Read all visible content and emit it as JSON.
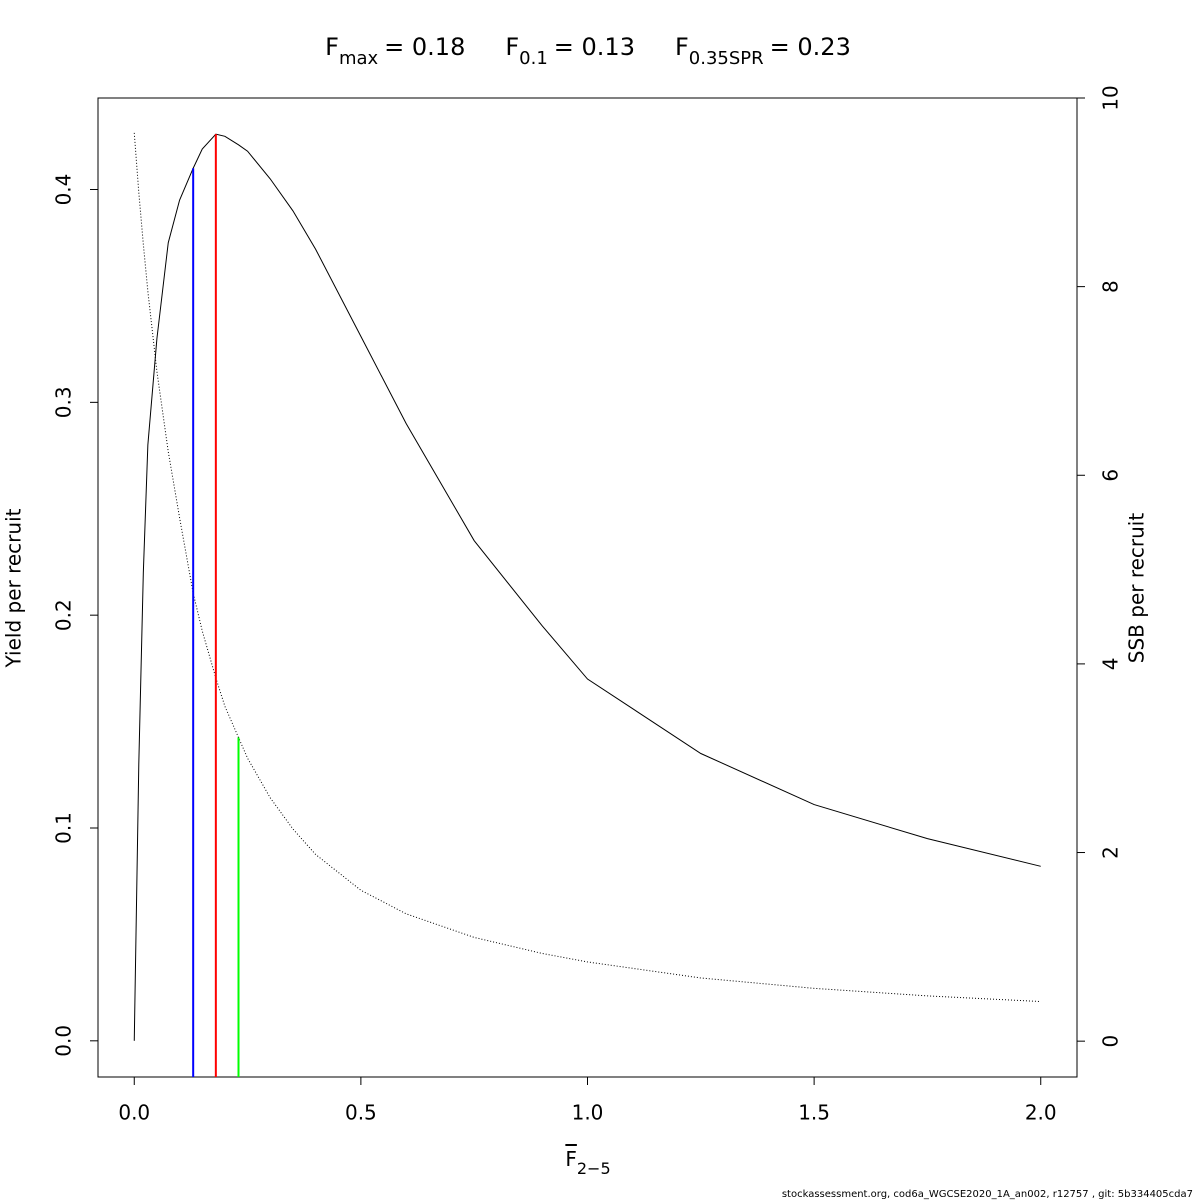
{
  "chart_data": {
    "type": "line",
    "reference_lines": [
      {
        "symbol": "F",
        "subscript": "max",
        "label": "= 0.18",
        "value": 0.18,
        "color": "#ff0000",
        "to_series": 0
      },
      {
        "symbol": "F",
        "subscript": "0.1",
        "label": "= 0.13",
        "value": 0.13,
        "color": "#0000ff",
        "to_series": 0
      },
      {
        "symbol": "F",
        "subscript": "0.35SPR",
        "label": "= 0.23",
        "value": 0.23,
        "color": "#00ff00",
        "to_series": 1
      }
    ],
    "xlabel": {
      "symbol": "F",
      "subscript": "2−5"
    },
    "ylabel": "Yield per recruit",
    "y2label": "SSB per recruit",
    "footer": "stockassessment.org, cod6a_WGCSE2020_1A_an002, r12757 , git: 5b334405cda7",
    "x": [
      0,
      0.01,
      0.02,
      0.03,
      0.05,
      0.075,
      0.1,
      0.13,
      0.15,
      0.18,
      0.2,
      0.23,
      0.25,
      0.3,
      0.35,
      0.4,
      0.5,
      0.6,
      0.75,
      0.9,
      1.0,
      1.25,
      1.5,
      1.75,
      2.0
    ],
    "series": [
      {
        "name": "Yield per recruit",
        "color": "#000000",
        "style": "solid",
        "values": [
          0,
          0.13,
          0.22,
          0.28,
          0.33,
          0.375,
          0.395,
          0.41,
          0.419,
          0.426,
          0.425,
          0.421,
          0.418,
          0.405,
          0.39,
          0.372,
          0.331,
          0.29,
          0.235,
          0.195,
          0.17,
          0.135,
          0.111,
          0.095,
          0.082
        ]
      },
      {
        "name": "SSB per recruit",
        "color": "#000000",
        "style": "dotted",
        "axis": "y2",
        "values": [
          9.63,
          9.0,
          8.45,
          7.95,
          7.1,
          6.25,
          5.55,
          4.75,
          4.35,
          3.85,
          3.55,
          3.22,
          3.0,
          2.58,
          2.25,
          1.98,
          1.6,
          1.35,
          1.1,
          0.93,
          0.84,
          0.67,
          0.56,
          0.48,
          0.42
        ]
      }
    ],
    "xlim": [
      -0.08,
      2.08
    ],
    "ylim": [
      -0.017,
      0.443
    ],
    "y2lim": [
      -0.38,
      10
    ],
    "xticks": [
      {
        "value": 0,
        "label": "0.0"
      },
      0.5,
      {
        "value": 1,
        "label": "1.0"
      },
      1.5,
      {
        "value": 2,
        "label": "2.0"
      }
    ],
    "yticks": [
      {
        "value": 0,
        "label": "0.0"
      },
      0.1,
      0.2,
      0.3,
      0.4
    ],
    "y2ticks": [
      0,
      2,
      4,
      6,
      8,
      10
    ],
    "grid": false
  }
}
